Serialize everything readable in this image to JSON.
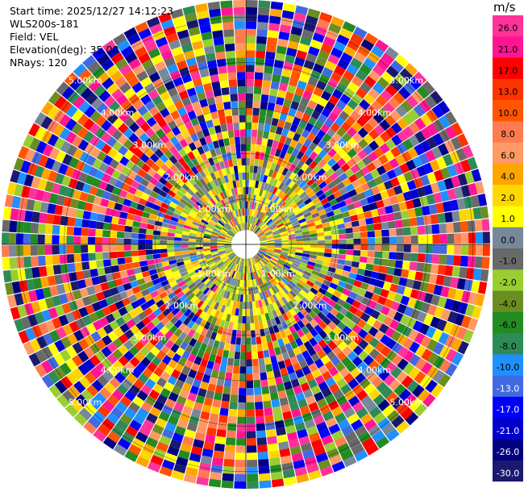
{
  "header": {
    "start_time": "Start time: 2025/12/27 14:12:23",
    "instrument": "WLS200s-181",
    "field": "Field: VEL",
    "elevation": "Elevation(deg): 35.00",
    "nrays": "NRays: 120"
  },
  "colorbar": {
    "unit": "m/s",
    "ticks": [
      "26.0",
      "21.0",
      "17.0",
      "13.0",
      "10.0",
      "8.0",
      "6.0",
      "4.0",
      "2.0",
      "1.0",
      "0.0",
      "-1.0",
      "-2.0",
      "-4.0",
      "-6.0",
      "-8.0",
      "-10.0",
      "-13.0",
      "-17.0",
      "-21.0",
      "-26.0",
      "-30.0"
    ],
    "colors": [
      "#ff3399",
      "#ff1493",
      "#ff0000",
      "#ff3300",
      "#ff5500",
      "#ff7a50",
      "#ff9966",
      "#ffa500",
      "#ffd700",
      "#ffff00",
      "#778899",
      "#696969",
      "#9acd32",
      "#6b8e23",
      "#228b22",
      "#2e8b57",
      "#1e90ff",
      "#4169e1",
      "#0000ff",
      "#0000cd",
      "#000080",
      "#191970"
    ]
  },
  "chart_data": {
    "type": "heatmap",
    "projection": "polar (PPI)",
    "field": "VEL",
    "units": "m/s",
    "n_rays": 120,
    "elevation_deg": 35.0,
    "vmin": -30.0,
    "vmax": 26.0,
    "range_ring_labels": [
      "1.00km",
      "2.00km",
      "3.00km",
      "4.00km",
      "5.00km"
    ],
    "note": "Per-gate radial velocities are not individually legible; values appear as noisy mixed colours across the full scale."
  }
}
